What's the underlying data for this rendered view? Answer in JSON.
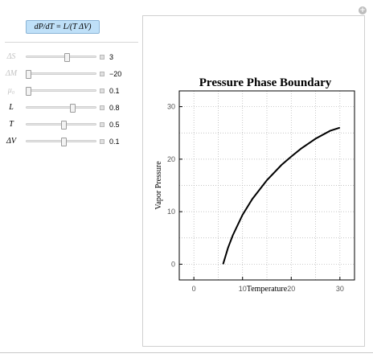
{
  "formula_button": {
    "label": "dP/dT = L/(T ΔV)"
  },
  "sliders": [
    {
      "label": "ΔS",
      "value": "3",
      "fraction": 0.58,
      "disabled": true
    },
    {
      "label": "ΔM",
      "value": "−20",
      "fraction": 0.02,
      "disabled": true
    },
    {
      "label": "μ₀",
      "value": "0.1",
      "fraction": 0.02,
      "disabled": true
    },
    {
      "label": "L",
      "value": "0.8",
      "fraction": 0.66,
      "disabled": false
    },
    {
      "label": "T",
      "value": "0.5",
      "fraction": 0.54,
      "disabled": false
    },
    {
      "label": "ΔV",
      "value": "0.1",
      "fraction": 0.54,
      "disabled": false
    }
  ],
  "corner_icon": "plus-icon",
  "colors": {
    "button_bg": "#bfe0f8",
    "curve": "#000000",
    "grid": "#b0b0b0"
  },
  "chart_data": {
    "type": "line",
    "title": "Pressure Phase Boundary",
    "xlabel": "Temperature",
    "ylabel": "Vapor Pressure",
    "xlim": [
      -3,
      33
    ],
    "ylim": [
      -3,
      33
    ],
    "x_ticks": [
      0,
      10,
      20,
      30
    ],
    "y_ticks": [
      0,
      10,
      20,
      30
    ],
    "grid": true,
    "series": [
      {
        "x": [
          6,
          7,
          8,
          10,
          12,
          15,
          18,
          20,
          22,
          25,
          28,
          30
        ],
        "y": [
          0,
          3.1,
          5.5,
          9.4,
          12.4,
          16.0,
          18.9,
          20.5,
          22.0,
          23.9,
          25.4,
          26.0
        ]
      }
    ]
  }
}
